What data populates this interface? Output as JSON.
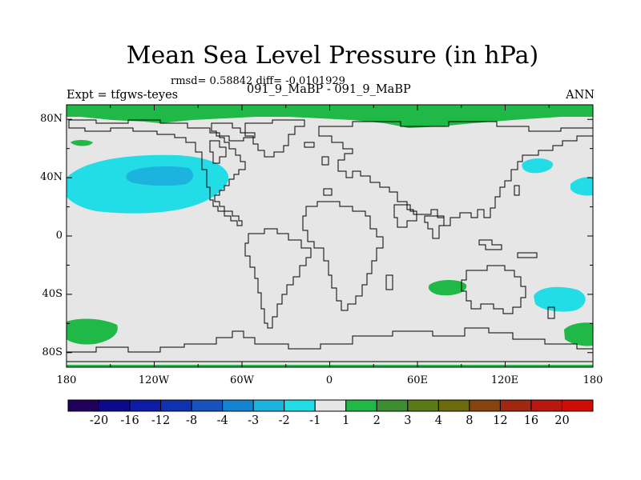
{
  "title": "Mean Sea Level Pressure (in hPa)",
  "stats": "rmsd= 0.58842 diff= -0.0101929",
  "subtitle": "091_9_MaBP - 091_9_MaBP",
  "left_label": "Expt = tfgws-teyes",
  "right_label": "ANN",
  "lat_labels": [
    "80N",
    "40N",
    "0",
    "40S",
    "80S"
  ],
  "lon_labels": [
    "180",
    "120W",
    "60W",
    "0",
    "60E",
    "120E",
    "180"
  ],
  "colorbar": {
    "labels": [
      "-20",
      "-16",
      "-12",
      "-8",
      "-4",
      "-3",
      "-2",
      "-1",
      "1",
      "2",
      "3",
      "4",
      "8",
      "12",
      "16",
      "20"
    ],
    "colors": [
      "#20005a",
      "#0b0a8c",
      "#0d1ca6",
      "#0f33b0",
      "#1a52bd",
      "#1484d0",
      "#1cb3df",
      "#22dde6",
      "#e6e6e6",
      "#20b846",
      "#3e8e2f",
      "#5a7a18",
      "#6b6a0c",
      "#884410",
      "#a02810",
      "#b81810",
      "#d00c06"
    ]
  },
  "colors": {
    "background": "#e6e6e6",
    "positive": "#20b846",
    "neg_light": "#22dde6",
    "neg_mid": "#1cb3df"
  }
}
